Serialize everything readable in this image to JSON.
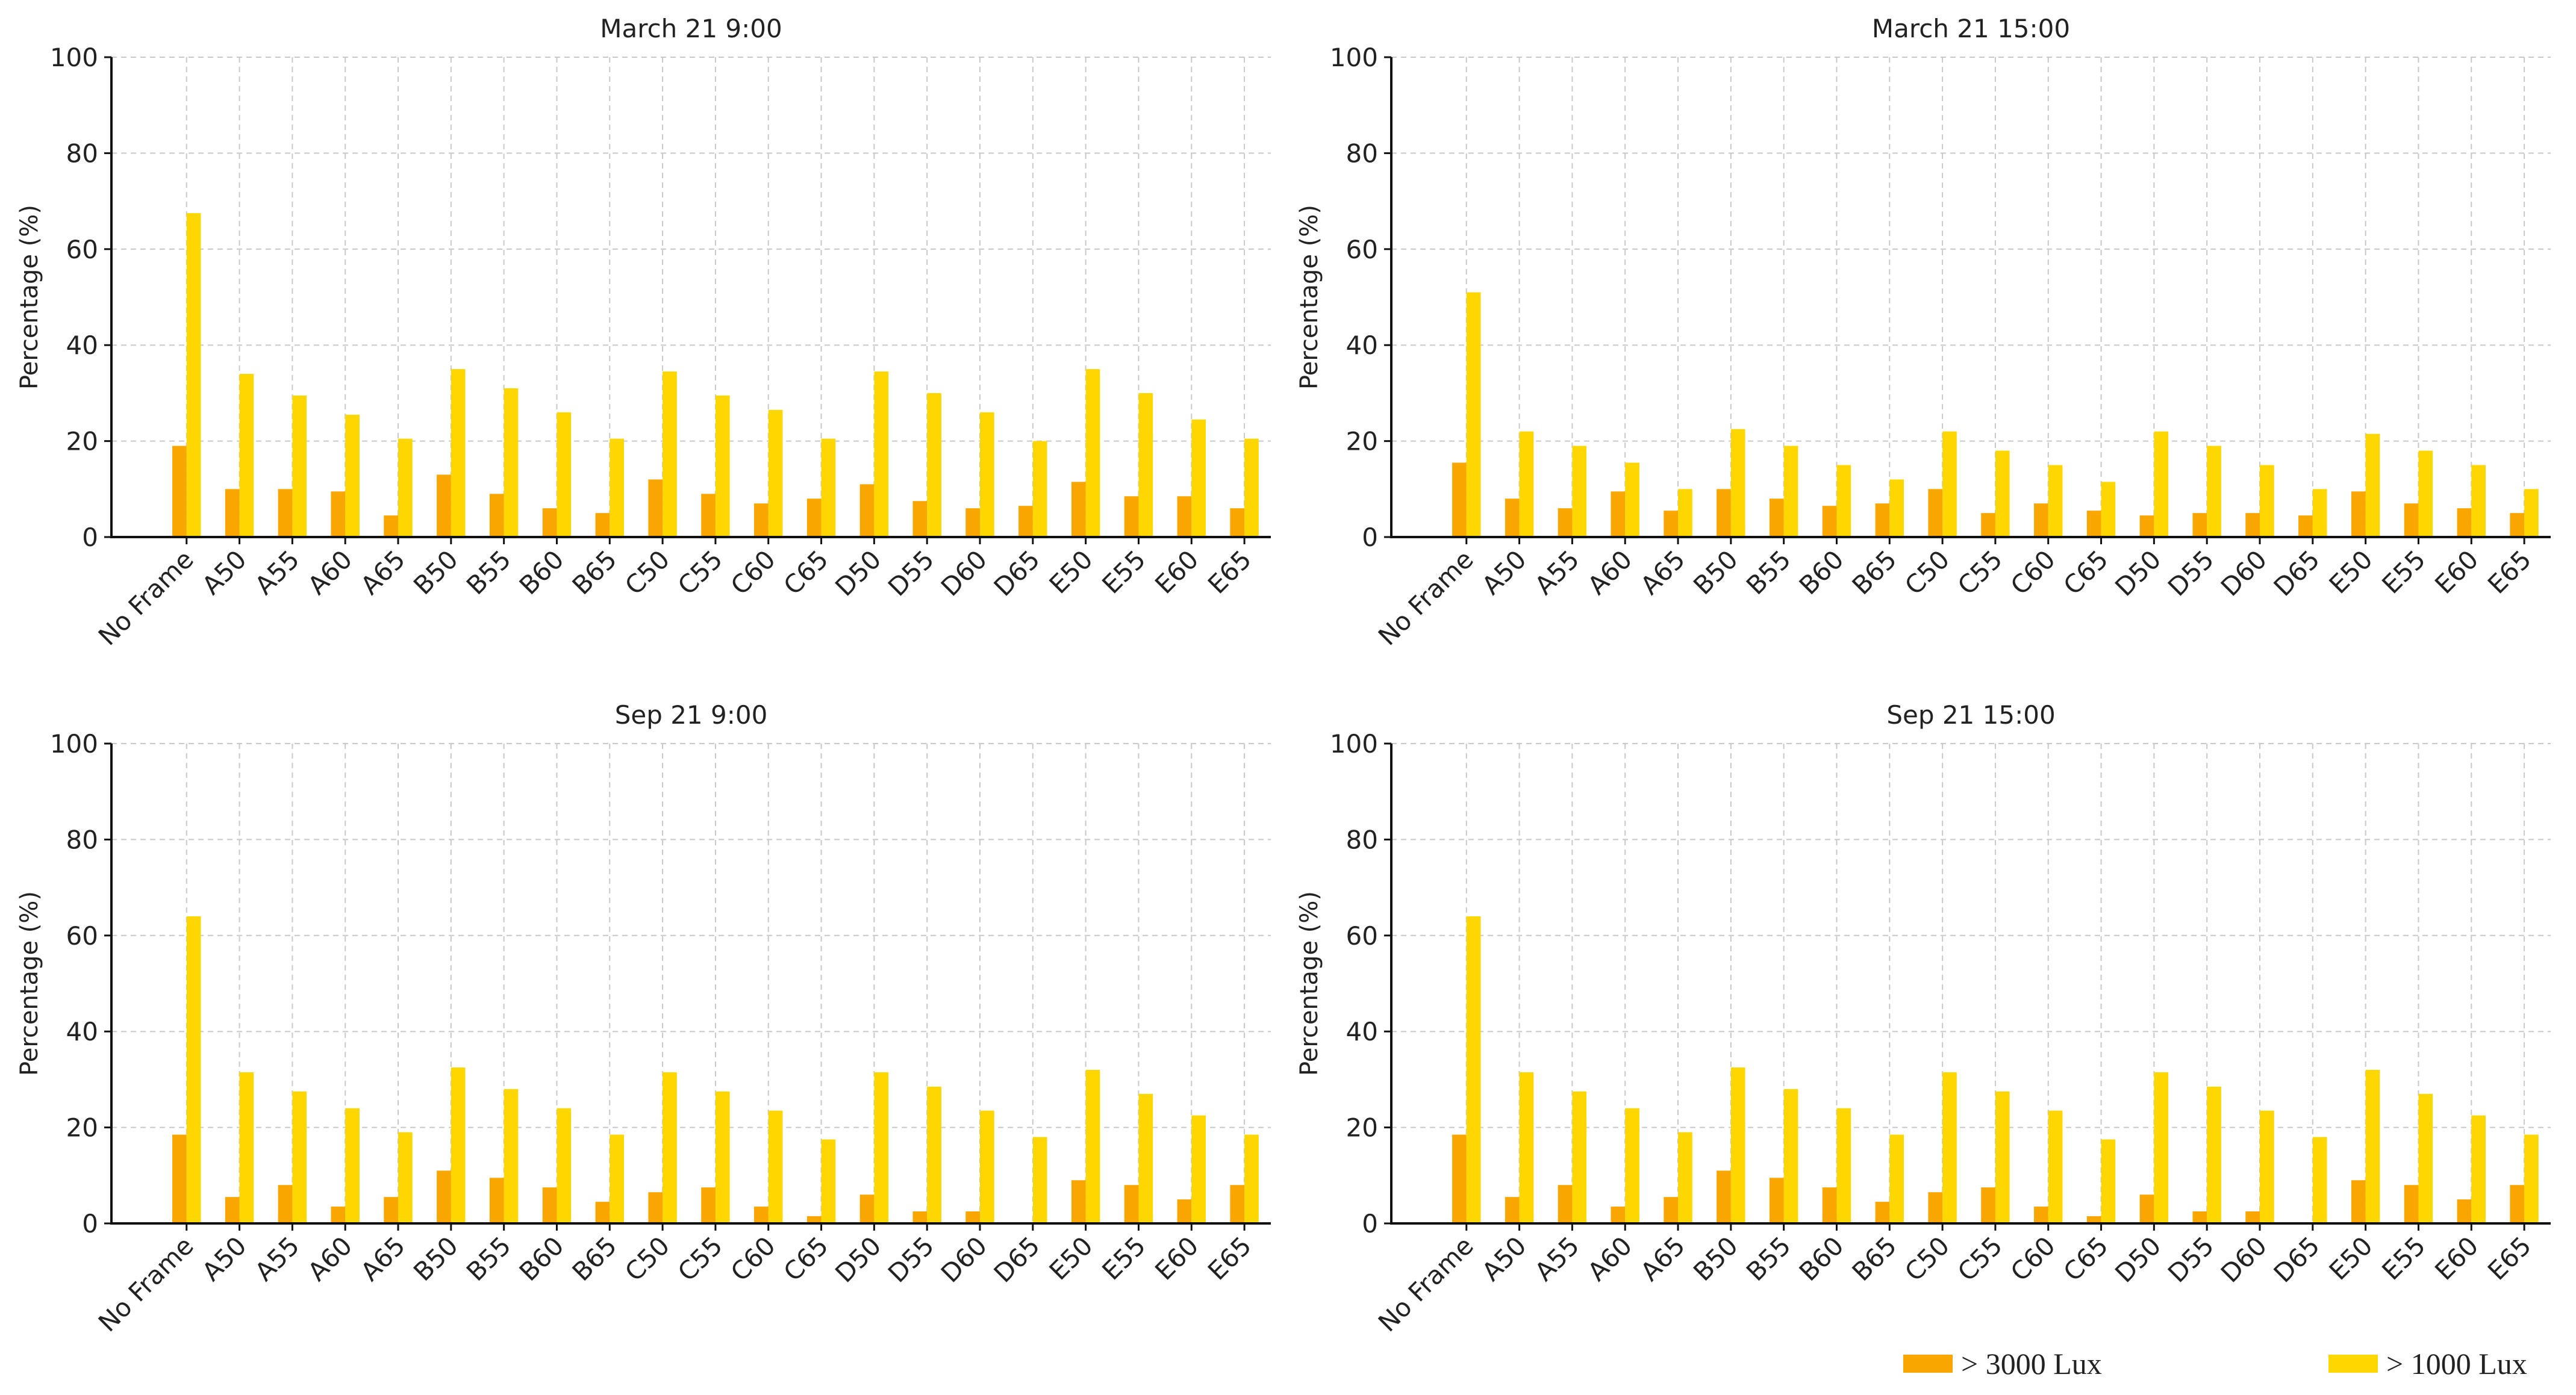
{
  "series_colors": {
    "lux3000": "#F9A600",
    "lux1000": "#FFD700"
  },
  "legend": [
    {
      "label": "> 3000 Lux",
      "color": "#F9A600"
    },
    {
      "label": "> 1000 Lux",
      "color": "#FFD700"
    }
  ],
  "chart_data": [
    {
      "type": "bar",
      "title": "March 21 9:00",
      "xlabel": "",
      "ylabel": "Percentage (%)",
      "ylim": [
        0,
        100
      ],
      "yticks": [
        0,
        20,
        40,
        60,
        80,
        100
      ],
      "categories": [
        "No Frame",
        "A50",
        "A55",
        "A60",
        "A65",
        "B50",
        "B55",
        "B60",
        "B65",
        "C50",
        "C55",
        "C60",
        "C65",
        "D50",
        "D55",
        "D60",
        "D65",
        "E50",
        "E55",
        "E60",
        "E65"
      ],
      "series": [
        {
          "name": "> 3000 Lux",
          "values": [
            19,
            10,
            10,
            9.5,
            4.5,
            13,
            9,
            6,
            5,
            12,
            9,
            7,
            8,
            11,
            7.5,
            6,
            6.5,
            11.5,
            8.5,
            8.5,
            6
          ]
        },
        {
          "name": "> 1000 Lux",
          "values": [
            67.5,
            34,
            29.5,
            25.5,
            20.5,
            35,
            31,
            26,
            20.5,
            34.5,
            29.5,
            26.5,
            20.5,
            34.5,
            30,
            26,
            20,
            35,
            30,
            24.5,
            20.5
          ]
        }
      ]
    },
    {
      "type": "bar",
      "title": "March 21 15:00",
      "xlabel": "",
      "ylabel": "Percentage (%)",
      "ylim": [
        0,
        100
      ],
      "yticks": [
        0,
        20,
        40,
        60,
        80,
        100
      ],
      "categories": [
        "No Frame",
        "A50",
        "A55",
        "A60",
        "A65",
        "B50",
        "B55",
        "B60",
        "B65",
        "C50",
        "C55",
        "C60",
        "C65",
        "D50",
        "D55",
        "D60",
        "D65",
        "E50",
        "E55",
        "E60",
        "E65"
      ],
      "series": [
        {
          "name": "> 3000 Lux",
          "values": [
            15.5,
            8,
            6,
            9.5,
            5.5,
            10,
            8,
            6.5,
            7,
            10,
            5,
            7,
            5.5,
            4.5,
            5,
            5,
            4.5,
            9.5,
            7,
            6,
            5
          ]
        },
        {
          "name": "> 1000 Lux",
          "values": [
            51,
            22,
            19,
            15.5,
            10,
            22.5,
            19,
            15,
            12,
            22,
            18,
            15,
            11.5,
            22,
            19,
            15,
            10,
            21.5,
            18,
            15,
            10
          ]
        }
      ]
    },
    {
      "type": "bar",
      "title": "Sep 21 9:00",
      "xlabel": "",
      "ylabel": "Percentage (%)",
      "ylim": [
        0,
        100
      ],
      "yticks": [
        0,
        20,
        40,
        60,
        80,
        100
      ],
      "categories": [
        "No Frame",
        "A50",
        "A55",
        "A60",
        "A65",
        "B50",
        "B55",
        "B60",
        "B65",
        "C50",
        "C55",
        "C60",
        "C65",
        "D50",
        "D55",
        "D60",
        "D65",
        "E50",
        "E55",
        "E60",
        "E65"
      ],
      "series": [
        {
          "name": "> 3000 Lux",
          "values": [
            18.5,
            5.5,
            8,
            3.5,
            5.5,
            11,
            9.5,
            7.5,
            4.5,
            6.5,
            7.5,
            3.5,
            1.5,
            6,
            2.5,
            2.5,
            0,
            9,
            8,
            5,
            8
          ]
        },
        {
          "name": "> 1000 Lux",
          "values": [
            64,
            31.5,
            27.5,
            24,
            19,
            32.5,
            28,
            24,
            18.5,
            31.5,
            27.5,
            23.5,
            17.5,
            31.5,
            28.5,
            23.5,
            18,
            32,
            27,
            22.5,
            18.5
          ]
        }
      ]
    },
    {
      "type": "bar",
      "title": "Sep 21 15:00",
      "xlabel": "",
      "ylabel": "Percentage (%)",
      "ylim": [
        0,
        100
      ],
      "yticks": [
        0,
        20,
        40,
        60,
        80,
        100
      ],
      "categories": [
        "No Frame",
        "A50",
        "A55",
        "A60",
        "A65",
        "B50",
        "B55",
        "B60",
        "B65",
        "C50",
        "C55",
        "C60",
        "C65",
        "D50",
        "D55",
        "D60",
        "D65",
        "E50",
        "E55",
        "E60",
        "E65"
      ],
      "series": [
        {
          "name": "> 3000 Lux",
          "values": [
            18.5,
            5.5,
            8,
            3.5,
            5.5,
            11,
            9.5,
            7.5,
            4.5,
            6.5,
            7.5,
            3.5,
            1.5,
            6,
            2.5,
            2.5,
            0,
            9,
            8,
            5,
            8
          ]
        },
        {
          "name": "> 1000 Lux",
          "values": [
            64,
            31.5,
            27.5,
            24,
            19,
            32.5,
            28,
            24,
            18.5,
            31.5,
            27.5,
            23.5,
            17.5,
            31.5,
            28.5,
            23.5,
            18,
            32,
            27,
            22.5,
            18.5
          ]
        }
      ]
    }
  ]
}
